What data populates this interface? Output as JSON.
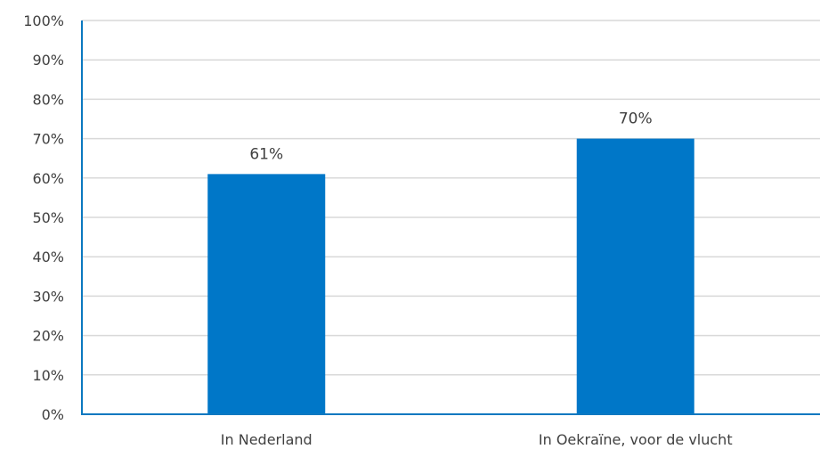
{
  "chart_data": {
    "type": "bar",
    "categories": [
      "In Nederland",
      "In Oekraïne, voor de vlucht"
    ],
    "series": [
      {
        "values": [
          61,
          70
        ],
        "labels": [
          "61%",
          "70%"
        ]
      }
    ],
    "title": "",
    "xlabel": "",
    "ylabel": "",
    "ylim": [
      0,
      100
    ],
    "yticks": [
      0,
      10,
      20,
      30,
      40,
      50,
      60,
      70,
      80,
      90,
      100
    ],
    "ytick_labels": [
      "0%",
      "10%",
      "20%",
      "30%",
      "40%",
      "50%",
      "60%",
      "70%",
      "80%",
      "90%",
      "100%"
    ],
    "grid": true,
    "legend": "none",
    "colors": {
      "bar": "#0077C8",
      "axis": "#0B78C0",
      "grid": "#D9D9D9"
    }
  }
}
